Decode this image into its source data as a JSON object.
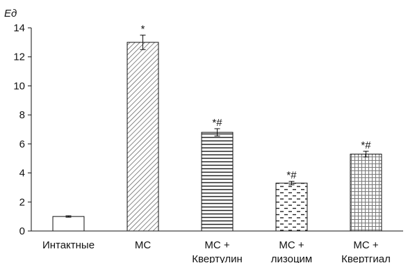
{
  "chart_data": {
    "type": "bar",
    "ylabel": "Ед",
    "ylim": [
      0,
      14
    ],
    "yticks": [
      0,
      2,
      4,
      6,
      8,
      10,
      12,
      14
    ],
    "categories": [
      [
        "Интактные"
      ],
      [
        "МС"
      ],
      [
        "МС +",
        "Квертулин"
      ],
      [
        "МС +",
        "лизоцим"
      ],
      [
        "МС +",
        "Квертгиал"
      ]
    ],
    "values": [
      1.0,
      13.0,
      6.8,
      3.3,
      5.3
    ],
    "errors": [
      0.05,
      0.5,
      0.25,
      0.12,
      0.2
    ],
    "annotations": [
      "",
      "*",
      "*#",
      "*#",
      "*#"
    ],
    "patterns": [
      "none",
      "diagonal",
      "horizontal-lines",
      "dashes",
      "grid"
    ],
    "grid": false,
    "bar_color": "#ffffff",
    "stroke_color": "#111111",
    "pattern_color": "#333333"
  }
}
